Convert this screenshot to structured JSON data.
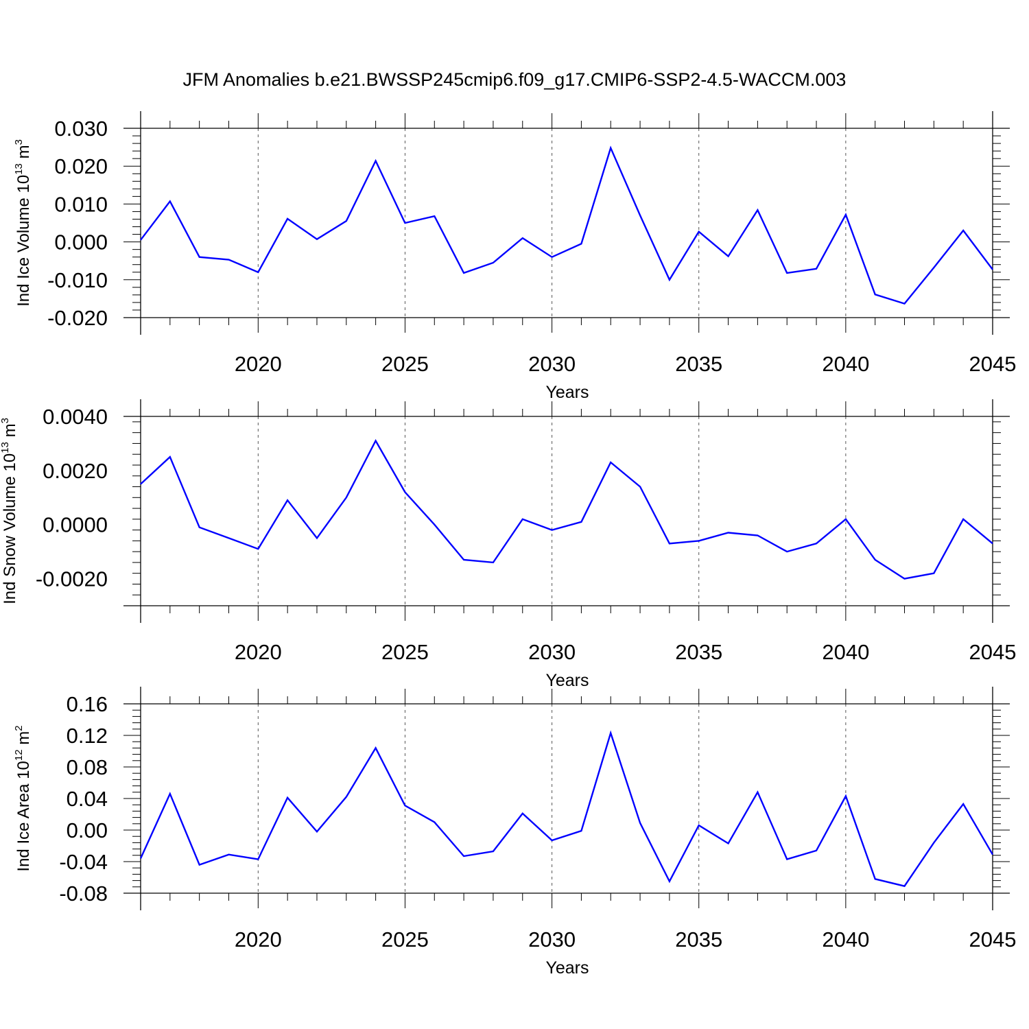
{
  "page": {
    "background": "#ffffff"
  },
  "title": "JFM Anomalies b.e21.BWSSP245cmip6.f09_g17.CMIP6-SSP2-4.5-WACCM.003",
  "line_color": "#0000ff",
  "chart_data": [
    {
      "type": "line",
      "ylabel": {
        "prefix": "Ind Ice Volume 10",
        "exp": "13",
        "unit": " m",
        "unit_exp": "3"
      },
      "xlabel": "Years",
      "xlim": [
        2016,
        2045
      ],
      "ylim": [
        -0.02,
        0.03
      ],
      "yticks": [
        -0.02,
        -0.01,
        0.0,
        0.01,
        0.02,
        0.03
      ],
      "ytick_labels": [
        "-0.020",
        "-0.010",
        "0.000",
        "0.010",
        "0.020",
        "0.030"
      ],
      "xticks": [
        2020,
        2025,
        2030,
        2035,
        2040,
        2045
      ],
      "xtick_labels": [
        "2020",
        "2025",
        "2030",
        "2035",
        "2040",
        "2045"
      ],
      "grid": "vertical dashed at major x ticks",
      "x": [
        2016,
        2017,
        2018,
        2019,
        2020,
        2021,
        2022,
        2023,
        2024,
        2025,
        2026,
        2027,
        2028,
        2029,
        2030,
        2031,
        2032,
        2033,
        2034,
        2035,
        2036,
        2037,
        2038,
        2039,
        2040,
        2041,
        2042,
        2043,
        2044,
        2045
      ],
      "series": [
        {
          "values": [
            0.0005,
            0.0107,
            -0.004,
            -0.0047,
            -0.008,
            0.0061,
            0.0007,
            0.0055,
            0.0214,
            0.005,
            0.0068,
            -0.0082,
            -0.0055,
            0.001,
            -0.004,
            -0.0005,
            0.0248,
            0.007,
            -0.01,
            0.0027,
            -0.0038,
            0.0084,
            -0.0082,
            -0.0071,
            0.0072,
            -0.0139,
            -0.0163,
            -0.0068,
            0.003,
            -0.0073
          ]
        }
      ]
    },
    {
      "type": "line",
      "ylabel": {
        "prefix": "Ind Snow Volume 10",
        "exp": "13",
        "unit": " m",
        "unit_exp": "3"
      },
      "xlabel": "Years",
      "xlim": [
        2016,
        2045
      ],
      "ylim": [
        -0.003,
        0.004
      ],
      "yticks": [
        -0.002,
        0.0,
        0.002,
        0.004
      ],
      "ytick_labels": [
        "-0.0020",
        "0.0000",
        "0.0020",
        "0.0040"
      ],
      "xticks": [
        2020,
        2025,
        2030,
        2035,
        2040,
        2045
      ],
      "xtick_labels": [
        "2020",
        "2025",
        "2030",
        "2035",
        "2040",
        "2045"
      ],
      "grid": "vertical dashed at major x ticks",
      "x": [
        2016,
        2017,
        2018,
        2019,
        2020,
        2021,
        2022,
        2023,
        2024,
        2025,
        2026,
        2027,
        2028,
        2029,
        2030,
        2031,
        2032,
        2033,
        2034,
        2035,
        2036,
        2037,
        2038,
        2039,
        2040,
        2041,
        2042,
        2043,
        2044,
        2045
      ],
      "series": [
        {
          "values": [
            0.0015,
            0.0025,
            -0.0001,
            -0.0005,
            -0.0009,
            0.0009,
            -0.0005,
            0.001,
            0.0031,
            0.0012,
            0.0,
            -0.0013,
            -0.0014,
            0.0002,
            -0.0002,
            0.0001,
            0.0023,
            0.0014,
            -0.0007,
            -0.0006,
            -0.0003,
            -0.0004,
            -0.001,
            -0.0007,
            0.0002,
            -0.0013,
            -0.002,
            -0.0018,
            0.0002,
            -0.0007
          ]
        }
      ]
    },
    {
      "type": "line",
      "ylabel": {
        "prefix": "Ind Ice Area 10",
        "exp": "12",
        "unit": " m",
        "unit_exp": "2"
      },
      "xlabel": "Years",
      "xlim": [
        2016,
        2045
      ],
      "ylim": [
        -0.08,
        0.16
      ],
      "yticks": [
        -0.08,
        -0.04,
        0.0,
        0.04,
        0.08,
        0.12,
        0.16
      ],
      "ytick_labels": [
        "-0.08",
        "-0.04",
        "0.00",
        "0.04",
        "0.08",
        "0.12",
        "0.16"
      ],
      "xticks": [
        2020,
        2025,
        2030,
        2035,
        2040,
        2045
      ],
      "xtick_labels": [
        "2020",
        "2025",
        "2030",
        "2035",
        "2040",
        "2045"
      ],
      "grid": "vertical dashed at major x ticks",
      "x": [
        2016,
        2017,
        2018,
        2019,
        2020,
        2021,
        2022,
        2023,
        2024,
        2025,
        2026,
        2027,
        2028,
        2029,
        2030,
        2031,
        2032,
        2033,
        2034,
        2035,
        2036,
        2037,
        2038,
        2039,
        2040,
        2041,
        2042,
        2043,
        2044,
        2045
      ],
      "series": [
        {
          "values": [
            -0.036,
            0.046,
            -0.044,
            -0.031,
            -0.037,
            0.041,
            -0.002,
            0.042,
            0.104,
            0.031,
            0.01,
            -0.033,
            -0.027,
            0.021,
            -0.013,
            -0.001,
            0.123,
            0.009,
            -0.065,
            0.006,
            -0.017,
            0.048,
            -0.037,
            -0.026,
            0.043,
            -0.062,
            -0.071,
            -0.016,
            0.033,
            -0.031
          ]
        }
      ]
    }
  ]
}
